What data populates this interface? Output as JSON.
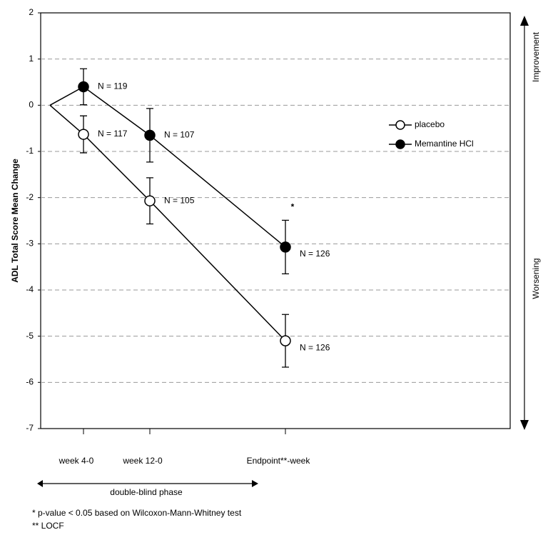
{
  "chart_data": {
    "type": "line",
    "y_label": "ADL Total Score Mean Change",
    "categories": [
      null,
      "week 4-0",
      "week 12-0",
      "Endpoint**-week"
    ],
    "ylim": [
      -7,
      2
    ],
    "yticks": [
      2,
      1,
      0,
      -1,
      -2,
      -3,
      -4,
      -5,
      -6,
      -7
    ],
    "grid": true,
    "legend_position": "right",
    "series": [
      {
        "name": "placebo",
        "color": "#000000",
        "marker": "open",
        "values": [
          0,
          -0.63,
          -2.07,
          -5.1
        ],
        "errors": [
          null,
          0.4,
          0.5,
          0.57
        ],
        "n_labels": [
          null,
          "N = 117",
          "N = 105",
          "N = 126"
        ]
      },
      {
        "name": "Memantine HCl",
        "color": "#000000",
        "marker": "filled",
        "values": [
          0,
          0.4,
          -0.65,
          -3.07
        ],
        "errors": [
          null,
          0.39,
          0.58,
          0.58
        ],
        "n_labels": [
          null,
          "N = 119",
          "N = 107",
          "N = 126"
        ]
      }
    ],
    "significance_marker": "*",
    "right_axis_top": "Improvement",
    "right_axis_bottom": "Worsening",
    "phase_label": "double-blind phase",
    "footnotes": [
      "* p-value < 0.05 based on Wilcoxon-Mann-Whitney test",
      "** LOCF"
    ]
  }
}
